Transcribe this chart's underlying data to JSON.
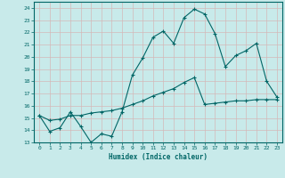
{
  "xlabel": "Humidex (Indice chaleur)",
  "bg_color": "#c8eaea",
  "line_color": "#006666",
  "grid_color": "#b0d8d8",
  "xlim": [
    -0.5,
    23.5
  ],
  "ylim": [
    13,
    24.5
  ],
  "yticks": [
    13,
    14,
    15,
    16,
    17,
    18,
    19,
    20,
    21,
    22,
    23,
    24
  ],
  "xticks": [
    0,
    1,
    2,
    3,
    4,
    5,
    6,
    7,
    8,
    9,
    10,
    11,
    12,
    13,
    14,
    15,
    16,
    17,
    18,
    19,
    20,
    21,
    22,
    23
  ],
  "line1_x": [
    0,
    1,
    2,
    3,
    4,
    5,
    6,
    7,
    8,
    9,
    10,
    11,
    12,
    13,
    14,
    15,
    16,
    17,
    18,
    19,
    20,
    21,
    22,
    23
  ],
  "line1_y": [
    15.2,
    13.9,
    14.2,
    15.5,
    14.3,
    13.0,
    13.7,
    13.5,
    15.5,
    18.5,
    19.9,
    21.6,
    22.1,
    21.1,
    23.2,
    23.9,
    23.5,
    21.9,
    19.2,
    20.1,
    20.5,
    21.1,
    18.0,
    16.7
  ],
  "line2_x": [
    0,
    1,
    2,
    3,
    4,
    5,
    6,
    7,
    8,
    9,
    10,
    11,
    12,
    13,
    14,
    15,
    16,
    17,
    18,
    19,
    20,
    21,
    22,
    23
  ],
  "line2_y": [
    15.2,
    14.8,
    14.9,
    15.2,
    15.2,
    15.4,
    15.5,
    15.6,
    15.8,
    16.1,
    16.4,
    16.8,
    17.1,
    17.4,
    17.9,
    18.3,
    16.1,
    16.2,
    16.3,
    16.4,
    16.4,
    16.5,
    16.5,
    16.5
  ]
}
